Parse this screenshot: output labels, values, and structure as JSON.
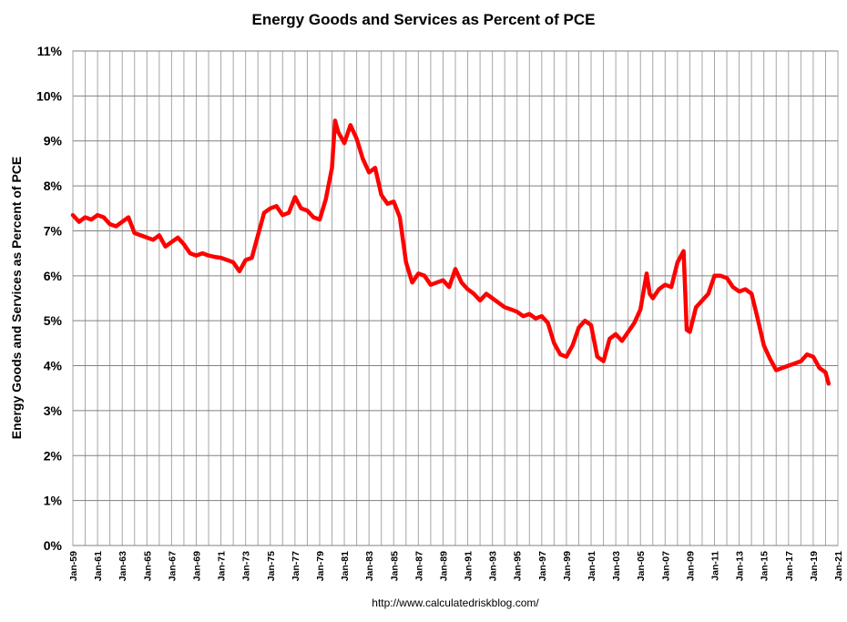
{
  "chart_data": {
    "type": "line",
    "title": "Energy Goods and Services as Percent of PCE",
    "xlabel": "",
    "ylabel": "Energy Goods and Services as Percent of PCE",
    "source_note": "http://www.calculatedriskblog.com/",
    "y_ticks": [
      "0%",
      "1%",
      "2%",
      "3%",
      "4%",
      "5%",
      "6%",
      "7%",
      "8%",
      "9%",
      "10%",
      "11%"
    ],
    "ylim": [
      0,
      11
    ],
    "x_ticks": [
      "Jan-59",
      "Jan-61",
      "Jan-63",
      "Jan-65",
      "Jan-67",
      "Jan-69",
      "Jan-71",
      "Jan-73",
      "Jan-75",
      "Jan-77",
      "Jan-79",
      "Jan-81",
      "Jan-83",
      "Jan-85",
      "Jan-87",
      "Jan-89",
      "Jan-91",
      "Jan-93",
      "Jan-95",
      "Jan-97",
      "Jan-99",
      "Jan-01",
      "Jan-03",
      "Jan-05",
      "Jan-07",
      "Jan-09",
      "Jan-11",
      "Jan-13",
      "Jan-15",
      "Jan-17",
      "Jan-19",
      "Jan-21"
    ],
    "xlim": [
      1959.0,
      2021.0
    ],
    "grid": "on",
    "legend": "none",
    "series": [
      {
        "color": "#ff0000",
        "x": [
          1959.0,
          1959.5,
          1960.0,
          1960.5,
          1961.0,
          1961.5,
          1962.0,
          1962.5,
          1963.0,
          1963.5,
          1964.0,
          1964.5,
          1965.0,
          1965.5,
          1966.0,
          1966.5,
          1967.0,
          1967.5,
          1968.0,
          1968.5,
          1969.0,
          1969.5,
          1970.0,
          1970.5,
          1971.0,
          1971.5,
          1972.0,
          1972.5,
          1973.0,
          1973.5,
          1974.0,
          1974.5,
          1975.0,
          1975.5,
          1976.0,
          1976.5,
          1977.0,
          1977.5,
          1978.0,
          1978.5,
          1979.0,
          1979.5,
          1980.0,
          1980.25,
          1980.5,
          1981.0,
          1981.5,
          1982.0,
          1982.5,
          1983.0,
          1983.5,
          1984.0,
          1984.5,
          1985.0,
          1985.5,
          1986.0,
          1986.5,
          1987.0,
          1987.5,
          1988.0,
          1988.5,
          1989.0,
          1989.5,
          1990.0,
          1990.5,
          1991.0,
          1991.5,
          1992.0,
          1992.5,
          1993.0,
          1993.5,
          1994.0,
          1994.5,
          1995.0,
          1995.5,
          1996.0,
          1996.5,
          1997.0,
          1997.5,
          1998.0,
          1998.5,
          1999.0,
          1999.5,
          2000.0,
          2000.5,
          2001.0,
          2001.5,
          2002.0,
          2002.5,
          2003.0,
          2003.5,
          2004.0,
          2004.5,
          2005.0,
          2005.5,
          2005.75,
          2006.0,
          2006.5,
          2007.0,
          2007.5,
          2008.0,
          2008.5,
          2008.75,
          2009.0,
          2009.5,
          2010.0,
          2010.5,
          2011.0,
          2011.5,
          2012.0,
          2012.5,
          2013.0,
          2013.5,
          2014.0,
          2014.5,
          2015.0,
          2015.5,
          2016.0,
          2016.5,
          2017.0,
          2017.5,
          2018.0,
          2018.5,
          2019.0,
          2019.5,
          2020.0,
          2020.25
        ],
        "y": [
          7.35,
          7.2,
          7.3,
          7.25,
          7.35,
          7.3,
          7.15,
          7.1,
          7.2,
          7.3,
          6.95,
          6.9,
          6.85,
          6.8,
          6.9,
          6.65,
          6.75,
          6.85,
          6.7,
          6.5,
          6.45,
          6.5,
          6.45,
          6.42,
          6.4,
          6.35,
          6.3,
          6.1,
          6.35,
          6.4,
          6.9,
          7.4,
          7.5,
          7.55,
          7.35,
          7.4,
          7.75,
          7.5,
          7.45,
          7.3,
          7.25,
          7.7,
          8.4,
          9.45,
          9.2,
          8.95,
          9.35,
          9.05,
          8.6,
          8.3,
          8.4,
          7.8,
          7.6,
          7.65,
          7.3,
          6.3,
          5.85,
          6.05,
          6.0,
          5.8,
          5.85,
          5.9,
          5.75,
          6.15,
          5.85,
          5.7,
          5.6,
          5.45,
          5.6,
          5.5,
          5.4,
          5.3,
          5.25,
          5.2,
          5.1,
          5.15,
          5.05,
          5.1,
          4.95,
          4.5,
          4.25,
          4.2,
          4.45,
          4.85,
          5.0,
          4.9,
          4.2,
          4.1,
          4.6,
          4.7,
          4.55,
          4.75,
          4.95,
          5.25,
          6.05,
          5.6,
          5.5,
          5.7,
          5.8,
          5.75,
          6.3,
          6.55,
          4.8,
          4.75,
          5.3,
          5.45,
          5.6,
          6.0,
          6.0,
          5.95,
          5.75,
          5.65,
          5.7,
          5.6,
          5.05,
          4.45,
          4.15,
          3.9,
          3.95,
          4.0,
          4.05,
          4.1,
          4.25,
          4.2,
          3.95,
          3.85,
          3.6
        ]
      }
    ]
  }
}
